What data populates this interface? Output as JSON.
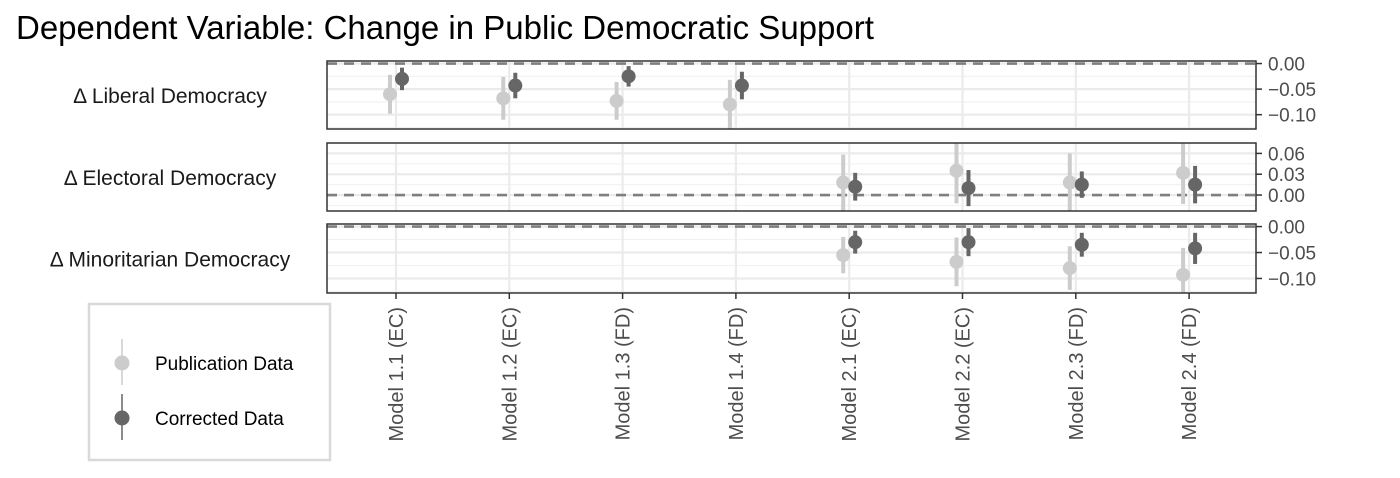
{
  "chart_data": {
    "type": "scatter",
    "title": "Dependent Variable: Change in Public Democratic Support",
    "categories": [
      "Model 1.1 (EC)",
      "Model 1.2 (EC)",
      "Model 1.3 (FD)",
      "Model 1.4 (FD)",
      "Model 2.1 (EC)",
      "Model 2.2 (EC)",
      "Model 2.3 (FD)",
      "Model 2.4 (FD)"
    ],
    "legend": {
      "position": "bottom-left",
      "entries": [
        {
          "label": "Publication Data",
          "color": "#cccccc"
        },
        {
          "label": "Corrected Data",
          "color": "#666666"
        }
      ]
    },
    "facets": [
      {
        "label": "Δ Liberal Democracy",
        "ylim": [
          -0.128,
          0.005
        ],
        "yticks": [
          0.0,
          -0.05,
          -0.1
        ],
        "tick_labels": [
          "0.00",
          "−0.05",
          "−0.10"
        ],
        "series": [
          {
            "name": "Publication Data",
            "points": [
              {
                "x": "Model 1.1 (EC)",
                "y": -0.06,
                "lo": -0.098,
                "hi": -0.022
              },
              {
                "x": "Model 1.2 (EC)",
                "y": -0.068,
                "lo": -0.11,
                "hi": -0.026
              },
              {
                "x": "Model 1.3 (FD)",
                "y": -0.073,
                "lo": -0.11,
                "hi": -0.036
              },
              {
                "x": "Model 1.4 (FD)",
                "y": -0.08,
                "lo": -0.128,
                "hi": -0.032
              }
            ]
          },
          {
            "name": "Corrected Data",
            "points": [
              {
                "x": "Model 1.1 (EC)",
                "y": -0.03,
                "lo": -0.052,
                "hi": -0.008
              },
              {
                "x": "Model 1.2 (EC)",
                "y": -0.043,
                "lo": -0.068,
                "hi": -0.018
              },
              {
                "x": "Model 1.3 (FD)",
                "y": -0.025,
                "lo": -0.045,
                "hi": -0.005
              },
              {
                "x": "Model 1.4 (FD)",
                "y": -0.043,
                "lo": -0.07,
                "hi": -0.016
              }
            ]
          }
        ]
      },
      {
        "label": "Δ Electoral Democracy",
        "ylim": [
          -0.023,
          0.075
        ],
        "yticks": [
          0.06,
          0.03,
          0.0
        ],
        "tick_labels": [
          "0.06",
          "0.03",
          "0.00"
        ],
        "series": [
          {
            "name": "Publication Data",
            "points": [
              {
                "x": "Model 2.1 (EC)",
                "y": 0.018,
                "lo": -0.023,
                "hi": 0.058
              },
              {
                "x": "Model 2.2 (EC)",
                "y": 0.035,
                "lo": -0.012,
                "hi": 0.082
              },
              {
                "x": "Model 2.3 (FD)",
                "y": 0.018,
                "lo": -0.023,
                "hi": 0.06
              },
              {
                "x": "Model 2.4 (FD)",
                "y": 0.032,
                "lo": -0.013,
                "hi": 0.077
              }
            ]
          },
          {
            "name": "Corrected Data",
            "points": [
              {
                "x": "Model 2.1 (EC)",
                "y": 0.012,
                "lo": -0.008,
                "hi": 0.032
              },
              {
                "x": "Model 2.2 (EC)",
                "y": 0.01,
                "lo": -0.016,
                "hi": 0.036
              },
              {
                "x": "Model 2.3 (FD)",
                "y": 0.015,
                "lo": -0.004,
                "hi": 0.034
              },
              {
                "x": "Model 2.4 (FD)",
                "y": 0.015,
                "lo": -0.012,
                "hi": 0.042
              }
            ]
          }
        ]
      },
      {
        "label": "Δ Minoritarian Democracy",
        "ylim": [
          -0.128,
          0.005
        ],
        "yticks": [
          0.0,
          -0.05,
          -0.1
        ],
        "tick_labels": [
          "0.00",
          "−0.05",
          "−0.10"
        ],
        "series": [
          {
            "name": "Publication Data",
            "points": [
              {
                "x": "Model 2.1 (EC)",
                "y": -0.055,
                "lo": -0.09,
                "hi": -0.02
              },
              {
                "x": "Model 2.2 (EC)",
                "y": -0.068,
                "lo": -0.115,
                "hi": -0.021
              },
              {
                "x": "Model 2.3 (FD)",
                "y": -0.08,
                "lo": -0.122,
                "hi": -0.038
              },
              {
                "x": "Model 2.4 (FD)",
                "y": -0.093,
                "lo": -0.145,
                "hi": -0.041
              }
            ]
          },
          {
            "name": "Corrected Data",
            "points": [
              {
                "x": "Model 2.1 (EC)",
                "y": -0.03,
                "lo": -0.052,
                "hi": -0.008
              },
              {
                "x": "Model 2.2 (EC)",
                "y": -0.03,
                "lo": -0.057,
                "hi": -0.003
              },
              {
                "x": "Model 2.3 (FD)",
                "y": -0.035,
                "lo": -0.058,
                "hi": -0.012
              },
              {
                "x": "Model 2.4 (FD)",
                "y": -0.042,
                "lo": -0.072,
                "hi": -0.012
              }
            ]
          }
        ]
      }
    ]
  }
}
